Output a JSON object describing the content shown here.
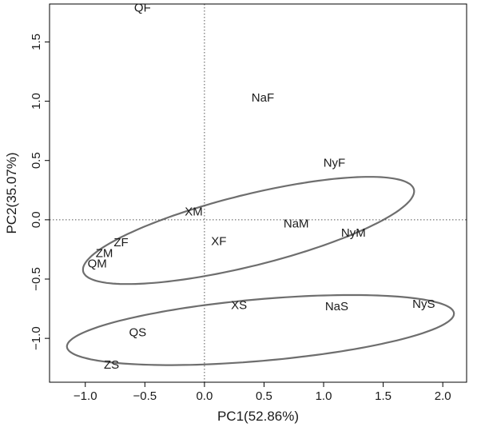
{
  "chart_data": {
    "type": "scatter",
    "xlabel": "PC1(52.86%)",
    "ylabel": "PC2(35.07%)",
    "xlim": [
      -1.3,
      2.2
    ],
    "ylim": [
      -1.37,
      1.82
    ],
    "xticks": [
      -1.0,
      -0.5,
      0.0,
      0.5,
      1.0,
      1.5,
      2.0
    ],
    "xtick_labels": [
      "−1.0",
      "−0.5",
      "0.0",
      "0.5",
      "1.0",
      "1.5",
      "2.0"
    ],
    "yticks": [
      -1.0,
      -0.5,
      0.0,
      0.5,
      1.0,
      1.5
    ],
    "ytick_labels": [
      "−1.0",
      "−0.5",
      "0.0",
      "0.5",
      "1.0",
      "1.5"
    ],
    "reference_lines": {
      "x": 0,
      "y": 0,
      "style": "dotted"
    },
    "points": [
      {
        "label": "QF",
        "x": -0.52,
        "y": 1.79
      },
      {
        "label": "NaF",
        "x": 0.49,
        "y": 1.03
      },
      {
        "label": "NyF",
        "x": 1.09,
        "y": 0.48
      },
      {
        "label": "XM",
        "x": -0.09,
        "y": 0.07
      },
      {
        "label": "NaM",
        "x": 0.77,
        "y": -0.03
      },
      {
        "label": "NyM",
        "x": 1.25,
        "y": -0.11
      },
      {
        "label": "ZF",
        "x": -0.7,
        "y": -0.19
      },
      {
        "label": "XF",
        "x": 0.12,
        "y": -0.18
      },
      {
        "label": "ZM",
        "x": -0.84,
        "y": -0.28
      },
      {
        "label": "QM",
        "x": -0.9,
        "y": -0.37
      },
      {
        "label": "XS",
        "x": 0.29,
        "y": -0.72
      },
      {
        "label": "NaS",
        "x": 1.11,
        "y": -0.73
      },
      {
        "label": "NyS",
        "x": 1.84,
        "y": -0.71
      },
      {
        "label": "QS",
        "x": -0.56,
        "y": -0.95
      },
      {
        "label": "ZS",
        "x": -0.78,
        "y": -1.22
      }
    ],
    "ellipses": [
      {
        "center": [
          0.37,
          -0.09
        ],
        "rx": 1.43,
        "ry": 0.3,
        "angle_deg": 14
      },
      {
        "center": [
          0.47,
          -0.93
        ],
        "rx": 1.63,
        "ry": 0.26,
        "angle_deg": 5
      }
    ],
    "colors": {
      "ellipse": "#6e6e6e",
      "text": "#1a1a1a",
      "axis": "#000000",
      "reference": "#555555"
    }
  }
}
